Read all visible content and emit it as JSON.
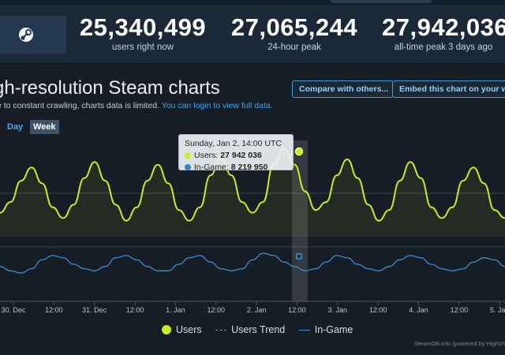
{
  "header": {
    "logo_icon": "steam-logo-icon",
    "stats": [
      {
        "value": "25,340,499",
        "label": "users right now"
      },
      {
        "value": "27,065,244",
        "label": "24-hour peak"
      },
      {
        "value": "27,942,036",
        "label": "all-time peak 3 days ago"
      }
    ]
  },
  "section": {
    "title": "gh-resolution Steam charts",
    "compare_button": "Compare with others...",
    "embed_button": "Embed this chart on your we",
    "notice_text": "e to constant crawling, charts data is limited.",
    "notice_link": "You can login to view full data.",
    "range_day": "Day",
    "range_week": "Week"
  },
  "tooltip": {
    "date": "Sunday, Jan 2, 14:00 UTC",
    "users_label": "Users:",
    "users_value": "27 942 036",
    "ingame_label": "In-Game:",
    "ingame_value": "8 219 950"
  },
  "legend": {
    "users": "Users",
    "trend": "Users Trend",
    "ingame": "In-Game"
  },
  "credit": "SteamDB.info (powered by Highch",
  "colors": {
    "users_line": "#c6ef1b",
    "ingame_line": "#3c8fd6",
    "accent_link": "#3aa7f0"
  },
  "chart_data": {
    "type": "line",
    "x_tick_labels": [
      "30. Dec",
      "12:00",
      "31. Dec",
      "12:00",
      "1. Jan",
      "12:00",
      "2. Jan",
      "12:00",
      "3. Jan",
      "12:00",
      "4. Jan",
      "12:00",
      "5. Jan"
    ],
    "series": [
      {
        "name": "Users",
        "values": [
          25.5,
          25.9,
          26.7,
          27.2,
          26.6,
          25.7,
          25.3,
          25.8,
          26.8,
          27.4,
          26.7,
          25.8,
          25.2,
          25.7,
          26.7,
          27.3,
          26.6,
          25.6,
          25.2,
          25.7,
          26.9,
          27.6,
          26.9,
          25.9,
          25.5,
          25.9,
          27.3,
          27.9,
          27.3,
          26.3,
          25.6,
          25.9,
          26.9,
          27.5,
          26.8,
          25.8,
          25.2,
          25.6,
          26.7,
          27.4,
          26.8,
          25.7,
          25.3,
          25.7,
          26.7,
          27.2,
          26.6,
          25.6,
          25.3
        ]
      },
      {
        "name": "In-Game",
        "values": [
          7.9,
          7.8,
          7.75,
          7.85,
          8.05,
          8.15,
          8.1,
          7.95,
          7.85,
          7.8,
          7.9,
          8.1,
          8.15,
          8.05,
          7.9,
          7.8,
          7.8,
          7.95,
          8.1,
          8.15,
          8.0,
          7.85,
          7.8,
          7.85,
          8.05,
          8.2,
          8.15,
          8.0,
          7.9,
          7.8,
          7.85,
          8.0,
          8.15,
          8.1,
          7.95,
          7.85,
          7.8,
          7.9,
          8.05,
          8.15,
          8.1,
          7.95,
          7.85,
          7.8,
          7.85,
          8.0,
          8.1,
          8.05,
          7.9
        ]
      }
    ],
    "highlight": {
      "label": "Sunday, Jan 2, 14:00 UTC",
      "users": 27942036,
      "in_game": 8219950
    },
    "legend_position": "bottom",
    "grid": true
  }
}
